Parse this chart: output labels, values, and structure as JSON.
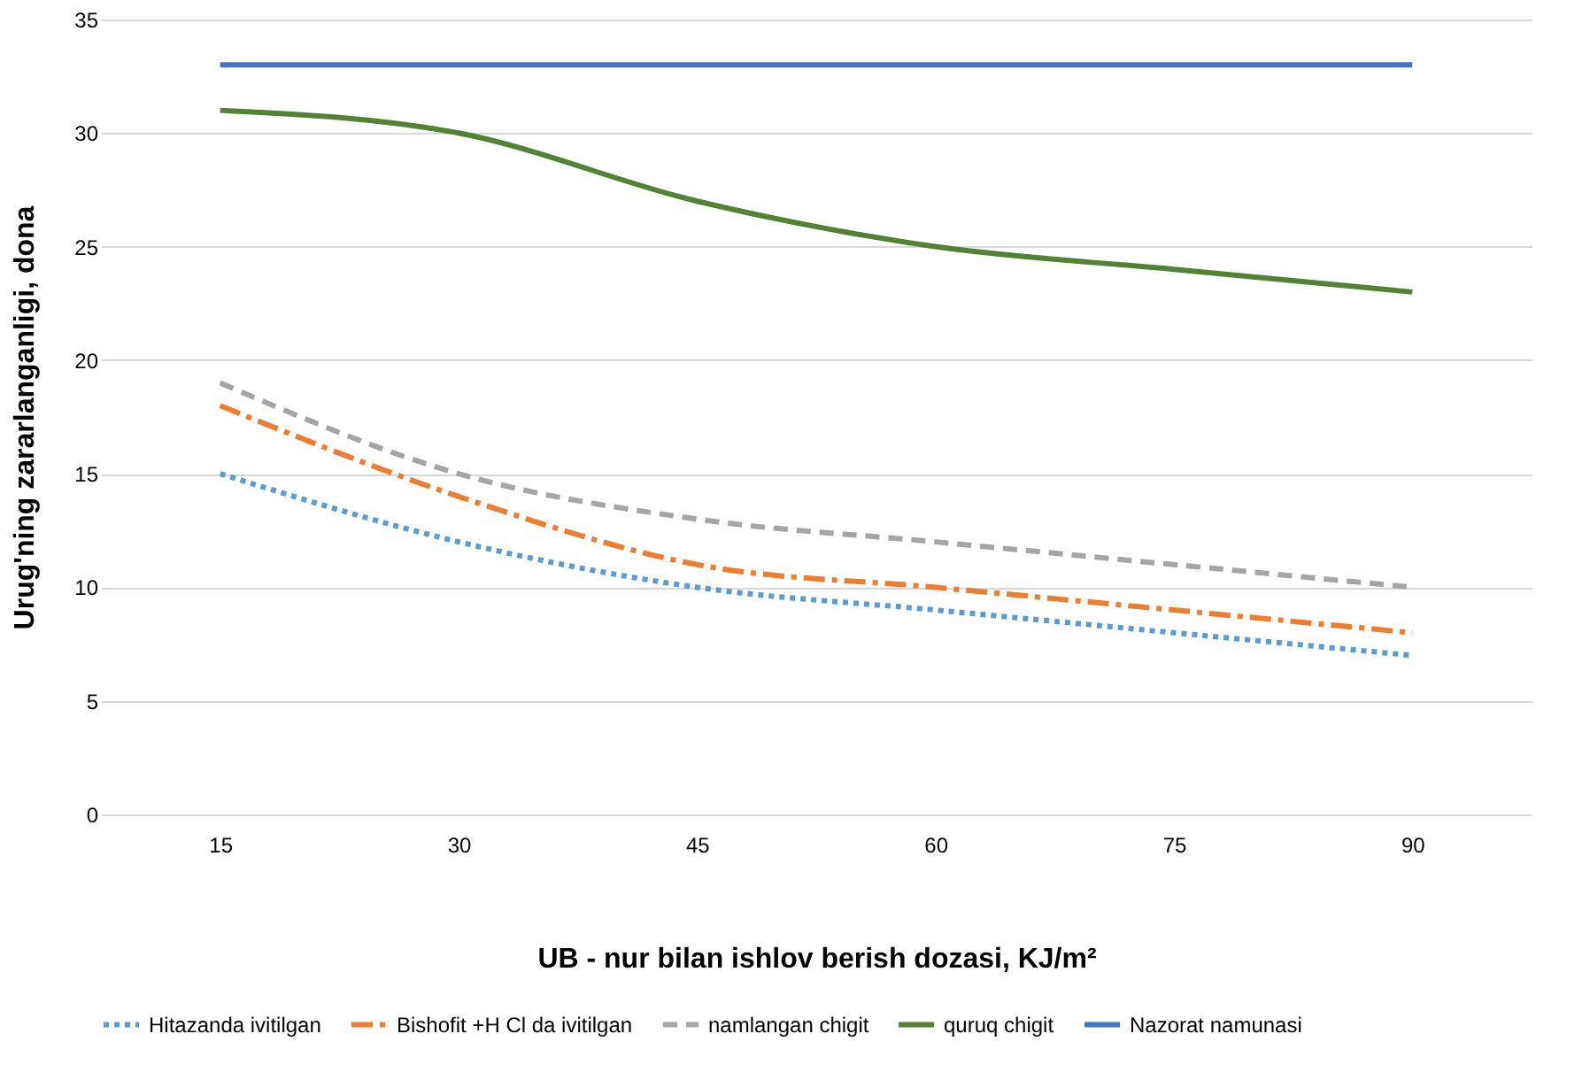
{
  "chart_data": {
    "type": "line",
    "xlabel": "UB - nur bilan ishlov berish dozasi, KJ/m²",
    "ylabel": "Urug'ning zararlanganligi, dona",
    "categories": [
      "15",
      "30",
      "45",
      "60",
      "75",
      "90"
    ],
    "ylim": [
      0,
      35
    ],
    "yticks": [
      0,
      5,
      10,
      15,
      20,
      25,
      30,
      35
    ],
    "grid": "y",
    "legend": "bottom",
    "marker": "none",
    "series": [
      {
        "name": "Hitazanda ivitilgan",
        "color": "#5b9bd5",
        "line_style": "dotted",
        "values": [
          15,
          12,
          10,
          9,
          8,
          7
        ]
      },
      {
        "name": "Bishofit +H Cl da ivitilgan",
        "color": "#ed7d31",
        "line_style": "dashdot",
        "values": [
          18,
          14,
          11,
          10,
          9,
          8
        ]
      },
      {
        "name": "namlangan chigit",
        "color": "#a5a5a5",
        "line_style": "dashed",
        "values": [
          19,
          15,
          13,
          12,
          11,
          10
        ]
      },
      {
        "name": "quruq chigit",
        "color": "#548235",
        "line_style": "solid",
        "values": [
          31,
          30,
          27,
          25,
          24,
          23
        ]
      },
      {
        "name": "Nazorat namunasi",
        "color": "#4472c4",
        "line_style": "solid",
        "values": [
          33,
          33,
          33,
          33,
          33,
          33
        ]
      }
    ]
  }
}
